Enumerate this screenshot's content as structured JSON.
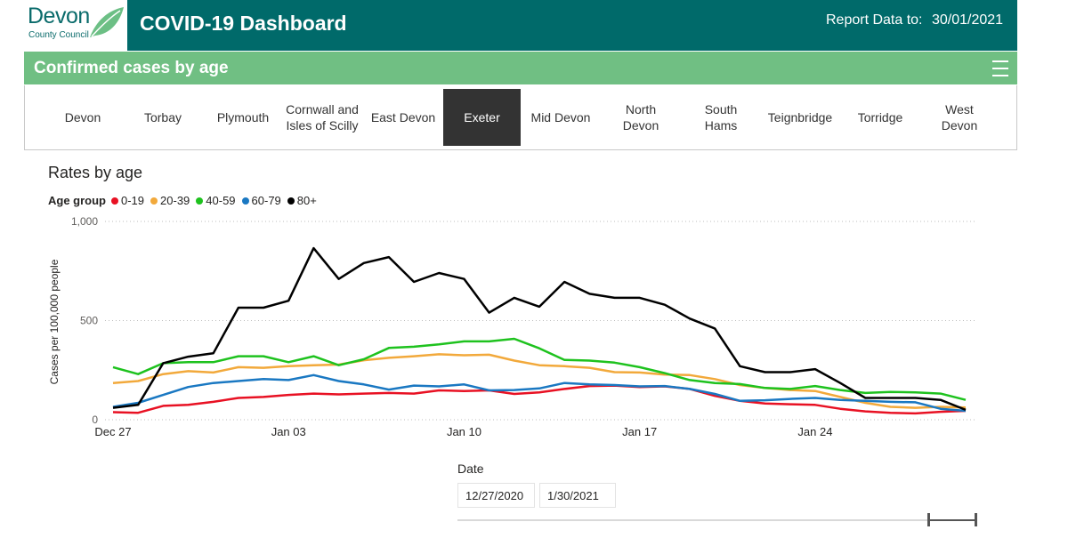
{
  "header": {
    "logo_name": "Devon",
    "logo_sub": "County Council",
    "title": "COVID-19 Dashboard",
    "report_label": "Report Data to:",
    "report_date": "30/01/2021",
    "accent_color": "#006a6a"
  },
  "section": {
    "title": "Confirmed cases by age",
    "bar_color": "#70bf83"
  },
  "tabs": [
    {
      "label": "Devon"
    },
    {
      "label": "Torbay"
    },
    {
      "label": "Plymouth"
    },
    {
      "label": "Cornwall and Isles of Scilly"
    },
    {
      "label": "East Devon"
    },
    {
      "label": "Exeter",
      "active": true
    },
    {
      "label": "Mid Devon"
    },
    {
      "label": "North Devon"
    },
    {
      "label": "South Hams"
    },
    {
      "label": "Teignbridge"
    },
    {
      "label": "Torridge"
    },
    {
      "label": "West Devon"
    }
  ],
  "chart_data": {
    "type": "line",
    "title": "Rates by age",
    "legend_title": "Age group",
    "xlabel": "",
    "ylabel": "Cases per 100,000 people",
    "ylim": [
      0,
      1000
    ],
    "y_ticks": [
      {
        "value": 0,
        "label": "0"
      },
      {
        "value": 500,
        "label": "500"
      },
      {
        "value": 1000,
        "label": "1,000"
      }
    ],
    "x_ticks": [
      {
        "day": 0,
        "label": "Dec 27"
      },
      {
        "day": 7,
        "label": "Jan 03"
      },
      {
        "day": 14,
        "label": "Jan 10"
      },
      {
        "day": 21,
        "label": "Jan 17"
      },
      {
        "day": 28,
        "label": "Jan 24"
      }
    ],
    "x_days": [
      0,
      1,
      2,
      3,
      4,
      5,
      6,
      7,
      8,
      9,
      10,
      11,
      12,
      13,
      14,
      15,
      16,
      17,
      18,
      19,
      20,
      21,
      22,
      23,
      24,
      25,
      26,
      27,
      28,
      29,
      30,
      31,
      32,
      33,
      34
    ],
    "series": [
      {
        "name": "0-19",
        "color": "#e81123",
        "values": [
          38,
          35,
          70,
          75,
          90,
          110,
          115,
          125,
          132,
          128,
          132,
          135,
          132,
          148,
          145,
          148,
          130,
          138,
          155,
          170,
          172,
          165,
          168,
          155,
          120,
          95,
          82,
          78,
          75,
          55,
          42,
          35,
          32,
          40,
          45
        ]
      },
      {
        "name": "20-39",
        "color": "#f2a93b",
        "values": [
          185,
          195,
          230,
          245,
          238,
          265,
          262,
          270,
          275,
          278,
          300,
          312,
          320,
          330,
          325,
          328,
          298,
          275,
          270,
          262,
          240,
          238,
          228,
          225,
          205,
          175,
          160,
          150,
          145,
          115,
          85,
          65,
          60,
          65,
          62
        ]
      },
      {
        "name": "40-59",
        "color": "#1ec21e",
        "values": [
          265,
          230,
          285,
          290,
          290,
          320,
          320,
          290,
          320,
          275,
          305,
          362,
          368,
          380,
          395,
          395,
          408,
          360,
          302,
          298,
          288,
          265,
          235,
          200,
          185,
          180,
          160,
          155,
          170,
          150,
          135,
          140,
          138,
          132,
          100
        ]
      },
      {
        "name": "60-79",
        "color": "#1a78c2",
        "values": [
          65,
          85,
          125,
          165,
          185,
          195,
          205,
          200,
          225,
          195,
          178,
          152,
          172,
          168,
          178,
          148,
          150,
          158,
          185,
          178,
          175,
          168,
          170,
          155,
          130,
          95,
          98,
          105,
          110,
          100,
          95,
          90,
          88,
          55,
          45
        ]
      },
      {
        "name": "80+",
        "color": "#000000",
        "values": [
          60,
          75,
          285,
          318,
          335,
          565,
          565,
          600,
          865,
          710,
          790,
          820,
          695,
          740,
          710,
          540,
          615,
          570,
          695,
          635,
          615,
          615,
          580,
          510,
          460,
          270,
          240,
          240,
          255,
          185,
          110,
          110,
          110,
          100,
          50
        ]
      }
    ]
  },
  "slicer": {
    "label": "Date",
    "start": "12/27/2020",
    "end": "1/30/2021"
  }
}
